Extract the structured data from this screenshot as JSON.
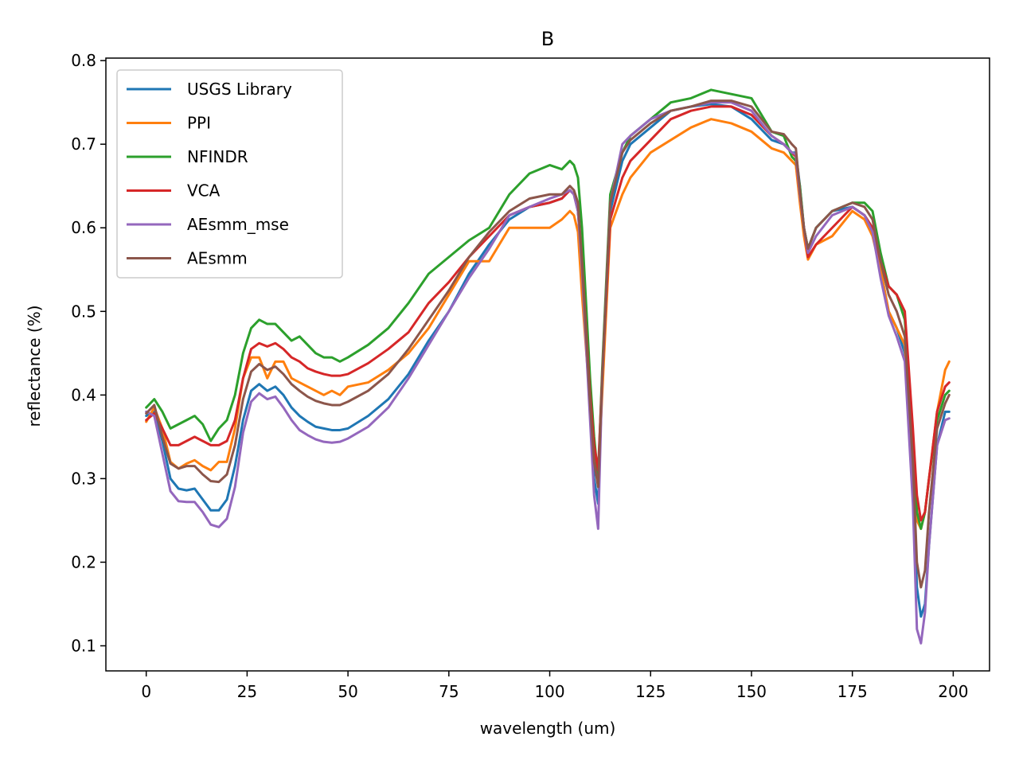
{
  "chart_data": {
    "type": "line",
    "title": "B",
    "xlabel": "wavelength (um)",
    "ylabel": "reflectance (%)",
    "xlim": [
      -10,
      209
    ],
    "ylim": [
      0.07,
      0.803
    ],
    "xticks": [
      0,
      25,
      50,
      75,
      100,
      125,
      150,
      175,
      200
    ],
    "yticks": [
      0.1,
      0.2,
      0.3,
      0.4,
      0.5,
      0.6,
      0.7,
      0.8
    ],
    "grid": false,
    "legend_position": "upper-left",
    "series": [
      {
        "name": "USGS Library",
        "color": "#1f77b4",
        "x": [
          0,
          2,
          4,
          6,
          8,
          10,
          12,
          14,
          16,
          18,
          20,
          22,
          24,
          26,
          28,
          30,
          32,
          34,
          36,
          38,
          40,
          42,
          44,
          46,
          48,
          50,
          55,
          60,
          65,
          70,
          75,
          80,
          85,
          90,
          95,
          100,
          103,
          105,
          106,
          107,
          108,
          110,
          111,
          112,
          113,
          115,
          118,
          120,
          125,
          130,
          135,
          140,
          145,
          150,
          155,
          158,
          160,
          161,
          162,
          163,
          164,
          166,
          170,
          175,
          178,
          180,
          182,
          184,
          186,
          188,
          190,
          191,
          192,
          193,
          194,
          196,
          198,
          199
        ],
        "y": [
          0.375,
          0.38,
          0.345,
          0.3,
          0.288,
          0.286,
          0.288,
          0.275,
          0.262,
          0.262,
          0.275,
          0.315,
          0.37,
          0.405,
          0.413,
          0.405,
          0.41,
          0.4,
          0.385,
          0.375,
          0.368,
          0.362,
          0.36,
          0.358,
          0.358,
          0.36,
          0.375,
          0.395,
          0.425,
          0.465,
          0.5,
          0.545,
          0.58,
          0.61,
          0.625,
          0.63,
          0.635,
          0.645,
          0.64,
          0.62,
          0.55,
          0.38,
          0.3,
          0.27,
          0.42,
          0.62,
          0.68,
          0.7,
          0.72,
          0.74,
          0.745,
          0.748,
          0.745,
          0.73,
          0.705,
          0.7,
          0.69,
          0.69,
          0.65,
          0.6,
          0.575,
          0.6,
          0.62,
          0.625,
          0.615,
          0.6,
          0.55,
          0.5,
          0.48,
          0.45,
          0.3,
          0.17,
          0.135,
          0.15,
          0.22,
          0.34,
          0.38,
          0.38
        ]
      },
      {
        "name": "PPI",
        "color": "#ff7f0e",
        "x": [
          0,
          2,
          4,
          6,
          8,
          10,
          12,
          14,
          16,
          18,
          20,
          22,
          24,
          26,
          28,
          30,
          32,
          34,
          36,
          38,
          40,
          42,
          44,
          46,
          48,
          50,
          55,
          60,
          65,
          70,
          75,
          80,
          85,
          90,
          95,
          100,
          103,
          105,
          106,
          107,
          108,
          110,
          111,
          112,
          113,
          115,
          118,
          120,
          125,
          130,
          135,
          140,
          145,
          150,
          155,
          158,
          160,
          161,
          162,
          163,
          164,
          166,
          170,
          175,
          178,
          180,
          182,
          184,
          186,
          188,
          190,
          191,
          192,
          193,
          194,
          196,
          198,
          199
        ],
        "y": [
          0.368,
          0.385,
          0.36,
          0.32,
          0.312,
          0.318,
          0.322,
          0.315,
          0.31,
          0.32,
          0.32,
          0.36,
          0.42,
          0.445,
          0.445,
          0.42,
          0.44,
          0.44,
          0.42,
          0.415,
          0.41,
          0.405,
          0.4,
          0.405,
          0.4,
          0.41,
          0.415,
          0.43,
          0.45,
          0.48,
          0.52,
          0.56,
          0.56,
          0.6,
          0.6,
          0.6,
          0.61,
          0.62,
          0.615,
          0.595,
          0.52,
          0.39,
          0.34,
          0.3,
          0.4,
          0.6,
          0.64,
          0.66,
          0.69,
          0.705,
          0.72,
          0.73,
          0.725,
          0.715,
          0.695,
          0.69,
          0.68,
          0.675,
          0.63,
          0.59,
          0.562,
          0.58,
          0.59,
          0.62,
          0.61,
          0.59,
          0.55,
          0.5,
          0.48,
          0.46,
          0.33,
          0.25,
          0.24,
          0.26,
          0.3,
          0.38,
          0.43,
          0.44
        ]
      },
      {
        "name": "NFINDR",
        "color": "#2ca02c",
        "x": [
          0,
          2,
          4,
          6,
          8,
          10,
          12,
          14,
          16,
          18,
          20,
          22,
          24,
          26,
          28,
          30,
          32,
          34,
          36,
          38,
          40,
          42,
          44,
          46,
          48,
          50,
          55,
          60,
          65,
          70,
          75,
          80,
          85,
          90,
          95,
          100,
          103,
          105,
          106,
          107,
          108,
          110,
          111,
          112,
          113,
          115,
          118,
          120,
          125,
          130,
          135,
          140,
          145,
          150,
          155,
          158,
          160,
          161,
          162,
          163,
          164,
          166,
          170,
          175,
          178,
          180,
          182,
          184,
          186,
          188,
          190,
          191,
          192,
          193,
          194,
          196,
          198,
          199
        ],
        "y": [
          0.385,
          0.395,
          0.38,
          0.36,
          0.365,
          0.37,
          0.375,
          0.365,
          0.345,
          0.36,
          0.37,
          0.4,
          0.45,
          0.48,
          0.49,
          0.485,
          0.485,
          0.475,
          0.465,
          0.47,
          0.46,
          0.45,
          0.445,
          0.445,
          0.44,
          0.445,
          0.46,
          0.48,
          0.51,
          0.545,
          0.565,
          0.585,
          0.6,
          0.64,
          0.665,
          0.675,
          0.67,
          0.68,
          0.675,
          0.66,
          0.6,
          0.42,
          0.35,
          0.3,
          0.43,
          0.64,
          0.69,
          0.71,
          0.73,
          0.75,
          0.755,
          0.765,
          0.76,
          0.755,
          0.715,
          0.71,
          0.685,
          0.68,
          0.65,
          0.6,
          0.575,
          0.6,
          0.62,
          0.63,
          0.63,
          0.62,
          0.57,
          0.53,
          0.52,
          0.49,
          0.35,
          0.26,
          0.24,
          0.26,
          0.3,
          0.37,
          0.4,
          0.405
        ]
      },
      {
        "name": "VCA",
        "color": "#d62728",
        "x": [
          0,
          2,
          4,
          6,
          8,
          10,
          12,
          14,
          16,
          18,
          20,
          22,
          24,
          26,
          28,
          30,
          32,
          34,
          36,
          38,
          40,
          42,
          44,
          46,
          48,
          50,
          55,
          60,
          65,
          70,
          75,
          80,
          85,
          90,
          95,
          100,
          103,
          105,
          106,
          107,
          108,
          110,
          111,
          112,
          113,
          115,
          118,
          120,
          125,
          130,
          135,
          140,
          145,
          150,
          155,
          158,
          160,
          161,
          162,
          163,
          164,
          166,
          170,
          175,
          178,
          180,
          182,
          184,
          186,
          188,
          190,
          191,
          192,
          193,
          194,
          196,
          198,
          199
        ],
        "y": [
          0.37,
          0.378,
          0.36,
          0.34,
          0.34,
          0.345,
          0.35,
          0.345,
          0.34,
          0.34,
          0.345,
          0.37,
          0.42,
          0.455,
          0.462,
          0.458,
          0.462,
          0.455,
          0.445,
          0.44,
          0.432,
          0.428,
          0.425,
          0.423,
          0.423,
          0.425,
          0.438,
          0.455,
          0.475,
          0.51,
          0.535,
          0.565,
          0.59,
          0.615,
          0.625,
          0.63,
          0.635,
          0.645,
          0.64,
          0.62,
          0.56,
          0.4,
          0.34,
          0.31,
          0.42,
          0.61,
          0.66,
          0.68,
          0.705,
          0.73,
          0.74,
          0.745,
          0.745,
          0.735,
          0.71,
          0.7,
          0.69,
          0.685,
          0.64,
          0.6,
          0.565,
          0.58,
          0.6,
          0.625,
          0.615,
          0.6,
          0.56,
          0.53,
          0.52,
          0.5,
          0.36,
          0.28,
          0.25,
          0.26,
          0.3,
          0.38,
          0.41,
          0.415
        ]
      },
      {
        "name": "AEsmm_mse",
        "color": "#9467bd",
        "x": [
          0,
          2,
          4,
          6,
          8,
          10,
          12,
          14,
          16,
          18,
          20,
          22,
          24,
          26,
          28,
          30,
          32,
          34,
          36,
          38,
          40,
          42,
          44,
          46,
          48,
          50,
          55,
          60,
          65,
          70,
          75,
          80,
          85,
          90,
          95,
          100,
          103,
          105,
          106,
          107,
          108,
          110,
          111,
          112,
          113,
          115,
          118,
          120,
          125,
          130,
          135,
          140,
          145,
          150,
          155,
          158,
          160,
          161,
          162,
          163,
          164,
          166,
          170,
          175,
          178,
          180,
          182,
          184,
          186,
          188,
          190,
          191,
          192,
          193,
          194,
          196,
          198,
          199
        ],
        "y": [
          0.38,
          0.375,
          0.33,
          0.285,
          0.273,
          0.272,
          0.272,
          0.26,
          0.245,
          0.242,
          0.252,
          0.29,
          0.355,
          0.392,
          0.402,
          0.395,
          0.398,
          0.385,
          0.37,
          0.358,
          0.352,
          0.347,
          0.344,
          0.343,
          0.344,
          0.348,
          0.362,
          0.385,
          0.42,
          0.46,
          0.5,
          0.54,
          0.575,
          0.615,
          0.625,
          0.635,
          0.64,
          0.645,
          0.64,
          0.62,
          0.55,
          0.37,
          0.28,
          0.24,
          0.42,
          0.63,
          0.7,
          0.71,
          0.73,
          0.74,
          0.745,
          0.75,
          0.75,
          0.74,
          0.71,
          0.7,
          0.69,
          0.688,
          0.64,
          0.6,
          0.57,
          0.59,
          0.615,
          0.625,
          0.615,
          0.595,
          0.54,
          0.495,
          0.47,
          0.44,
          0.27,
          0.12,
          0.103,
          0.14,
          0.22,
          0.34,
          0.37,
          0.372
        ]
      },
      {
        "name": "AEsmm",
        "color": "#8c564b",
        "x": [
          0,
          2,
          4,
          6,
          8,
          10,
          12,
          14,
          16,
          18,
          20,
          22,
          24,
          26,
          28,
          30,
          32,
          34,
          36,
          38,
          40,
          42,
          44,
          46,
          48,
          50,
          55,
          60,
          65,
          70,
          75,
          80,
          85,
          90,
          95,
          100,
          103,
          105,
          106,
          107,
          108,
          110,
          111,
          112,
          113,
          115,
          118,
          120,
          125,
          130,
          135,
          140,
          145,
          150,
          155,
          158,
          160,
          161,
          162,
          163,
          164,
          166,
          170,
          175,
          178,
          180,
          182,
          184,
          186,
          188,
          190,
          191,
          192,
          193,
          194,
          196,
          198,
          199
        ],
        "y": [
          0.378,
          0.388,
          0.35,
          0.318,
          0.312,
          0.315,
          0.315,
          0.305,
          0.297,
          0.296,
          0.305,
          0.34,
          0.395,
          0.428,
          0.437,
          0.43,
          0.434,
          0.425,
          0.413,
          0.405,
          0.398,
          0.393,
          0.39,
          0.388,
          0.388,
          0.392,
          0.405,
          0.425,
          0.455,
          0.49,
          0.525,
          0.565,
          0.595,
          0.62,
          0.635,
          0.64,
          0.64,
          0.65,
          0.645,
          0.63,
          0.56,
          0.39,
          0.32,
          0.29,
          0.42,
          0.63,
          0.69,
          0.705,
          0.725,
          0.74,
          0.745,
          0.752,
          0.752,
          0.745,
          0.715,
          0.712,
          0.7,
          0.695,
          0.645,
          0.6,
          0.575,
          0.6,
          0.62,
          0.63,
          0.625,
          0.61,
          0.56,
          0.52,
          0.5,
          0.47,
          0.32,
          0.2,
          0.17,
          0.19,
          0.26,
          0.36,
          0.39,
          0.4
        ]
      }
    ]
  }
}
